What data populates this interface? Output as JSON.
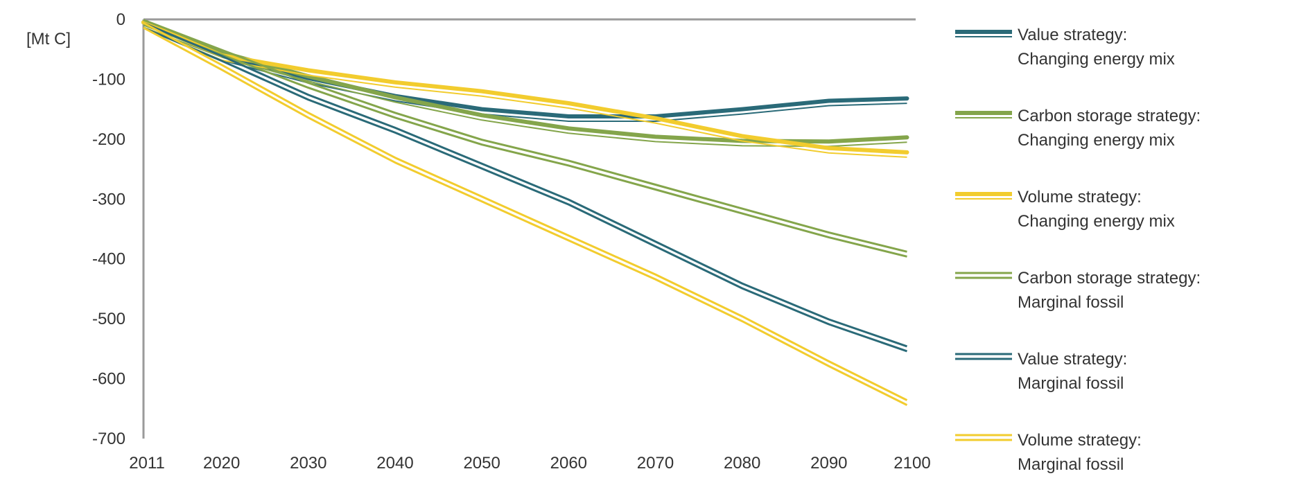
{
  "chart_data": {
    "type": "line",
    "title": "",
    "unit_label": "[Mt C]",
    "xlabel": "",
    "ylabel": "",
    "xlim": [
      2011,
      2100
    ],
    "ylim": [
      -700,
      0
    ],
    "x_ticks": [
      "2011",
      "2020",
      "2030",
      "2040",
      "2050",
      "2060",
      "2070",
      "2080",
      "2090",
      "2100"
    ],
    "y_ticks": [
      "0",
      "-100",
      "-200",
      "-300",
      "-400",
      "-500",
      "-600",
      "-700"
    ],
    "grid": false,
    "legend_position": "right",
    "x": [
      2011,
      2020,
      2030,
      2040,
      2050,
      2060,
      2070,
      2080,
      2090,
      2099
    ],
    "series": [
      {
        "name": "Value strategy: Changing energy mix",
        "legend_lines": [
          "Value strategy:",
          "Changing energy mix"
        ],
        "style": "thick",
        "color": "#2a6a78",
        "values": [
          -5,
          -60,
          -98,
          -128,
          -150,
          -162,
          -162,
          -150,
          -136,
          -132
        ]
      },
      {
        "name": "Carbon storage strategy: Changing energy mix",
        "legend_lines": [
          "Carbon storage strategy:",
          "Changing energy mix"
        ],
        "style": "thick",
        "color": "#84a54b",
        "values": [
          -5,
          -55,
          -95,
          -130,
          -160,
          -182,
          -196,
          -203,
          -204,
          -197
        ]
      },
      {
        "name": "Volume strategy: Changing energy mix",
        "legend_lines": [
          "Volume strategy:",
          "Changing energy mix"
        ],
        "style": "thick",
        "color": "#f2cc2e",
        "values": [
          -5,
          -60,
          -85,
          -105,
          -120,
          -140,
          -165,
          -195,
          -215,
          -222
        ]
      },
      {
        "name": "Carbon storage strategy: Marginal fossil",
        "legend_lines": [
          "Carbon storage strategy:",
          "Marginal fossil"
        ],
        "style": "double",
        "color": "#84a54b",
        "values": [
          -5,
          -55,
          -110,
          -160,
          -205,
          -240,
          -280,
          -320,
          -360,
          -392
        ]
      },
      {
        "name": "Value strategy: Marginal fossil",
        "legend_lines": [
          "Value strategy:",
          "Marginal fossil"
        ],
        "style": "double",
        "color": "#2a6a78",
        "values": [
          -10,
          -65,
          -130,
          -185,
          -245,
          -305,
          -375,
          -445,
          -505,
          -550
        ]
      },
      {
        "name": "Volume strategy: Marginal fossil",
        "legend_lines": [
          "Volume strategy:",
          "Marginal fossil"
        ],
        "style": "double",
        "color": "#f2cc2e",
        "values": [
          -10,
          -80,
          -160,
          -235,
          -300,
          -365,
          -430,
          -500,
          -575,
          -640
        ]
      }
    ]
  }
}
